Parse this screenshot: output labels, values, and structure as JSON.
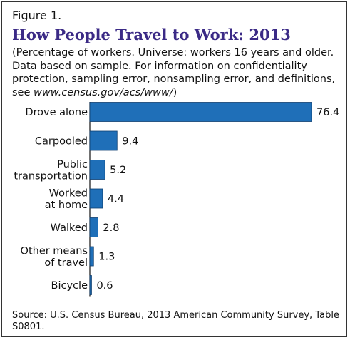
{
  "figure_label": "Figure 1.",
  "title": "How People Travel to Work: 2013",
  "subtitle": {
    "text": "(Percentage of workers. Universe: workers 16 years and older. Data based on sample. For information on confidentiality protection, sampling error, nonsampling error, and definitions, see ",
    "url": "www.census.gov/acs/www/",
    "closing": ")"
  },
  "source": "Source: U.S. Census Bureau, 2013 American Community Survey, Table S0801.",
  "colors": {
    "bar": "#1f6fb8",
    "bar_outline": "#0f3f70",
    "title": "#3b2a86",
    "axis": "#111111"
  },
  "chart_data": {
    "type": "bar",
    "orientation": "horizontal",
    "categories": [
      [
        "Drove alone"
      ],
      [
        "Carpooled"
      ],
      [
        "Public",
        "transportation"
      ],
      [
        "Worked",
        "at home"
      ],
      [
        "Walked"
      ],
      [
        "Other means",
        "of travel"
      ],
      [
        "Bicycle"
      ]
    ],
    "values": [
      76.4,
      9.4,
      5.2,
      4.4,
      2.8,
      1.3,
      0.6
    ],
    "value_labels": [
      "76.4",
      "9.4",
      "5.2",
      "4.4",
      "2.8",
      "1.3",
      "0.6"
    ],
    "xlim": [
      0,
      76.4
    ],
    "grid": false,
    "legend": "none"
  }
}
